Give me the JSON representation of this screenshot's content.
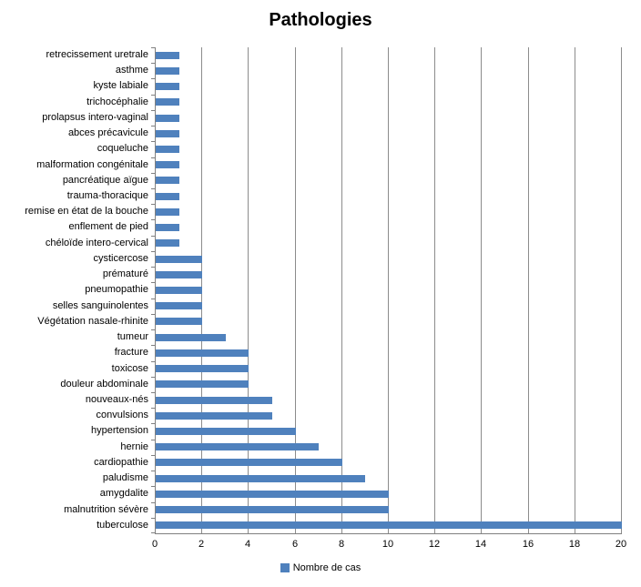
{
  "chart_data": {
    "type": "bar",
    "orientation": "horizontal",
    "title": "Pathologies",
    "series_name": "Nombre de cas",
    "categories": [
      "retrecissement uretrale",
      "asthme",
      "kyste labiale",
      "trichocéphalie",
      "prolapsus intero-vaginal",
      "abces précavicule",
      "coqueluche",
      "malformation congénitale",
      "pancréatique aïgue",
      "trauma-thoracique",
      "remise en état de la bouche",
      "enflement de pied",
      "chéloïde intero-cervical",
      "cysticercose",
      "prématuré",
      "pneumopathie",
      "selles sanguinolentes",
      "Végétation nasale-rhinite",
      "tumeur",
      "fracture",
      "toxicose",
      "douleur abdominale",
      "nouveaux-nés",
      "convulsions",
      "hypertension",
      "hernie",
      "cardiopathie",
      "paludisme",
      "amygdalite",
      "malnutrition sévère",
      "tuberculose"
    ],
    "values": [
      1,
      1,
      1,
      1,
      1,
      1,
      1,
      1,
      1,
      1,
      1,
      1,
      1,
      2,
      2,
      2,
      2,
      2,
      3,
      4,
      4,
      4,
      5,
      5,
      6,
      7,
      8,
      9,
      10,
      10,
      20
    ],
    "xlim": [
      0,
      20
    ],
    "x_ticks": [
      0,
      2,
      4,
      6,
      8,
      10,
      12,
      14,
      16,
      18,
      20
    ],
    "grid": true,
    "legend_position": "bottom",
    "bar_color": "#4F81BD",
    "gridline_color": "#8c8c8c",
    "axis_color": "#808080"
  }
}
